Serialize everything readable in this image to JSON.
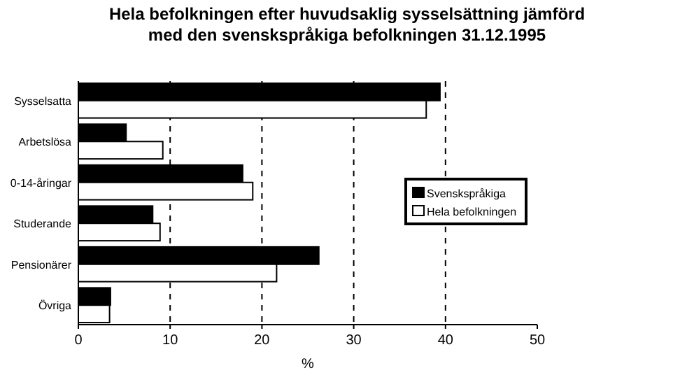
{
  "chart_data": {
    "type": "bar",
    "orientation": "horizontal",
    "title": "Hela befolkningen efter huvudsaklig sysselsättning jämförd med den svenskspråkiga befolkningen 31.12.1995",
    "xlabel": "%",
    "categories": [
      "Sysselsatta",
      "Arbetslösa",
      "0-14-åringar",
      "Studerande",
      "Pensionärer",
      "Övriga"
    ],
    "series": [
      {
        "name": "Svenskspråkiga",
        "color": "#000000",
        "values": [
          39.4,
          5.2,
          17.9,
          8.1,
          26.2,
          3.5
        ]
      },
      {
        "name": "Hela befolkningen",
        "color": "#ffffff",
        "values": [
          37.9,
          9.2,
          19.0,
          8.9,
          21.6,
          3.4
        ]
      }
    ],
    "xlim": [
      0,
      50
    ],
    "xticks": [
      0,
      10,
      20,
      30,
      40,
      50
    ],
    "grid": "x",
    "legend": "right"
  }
}
